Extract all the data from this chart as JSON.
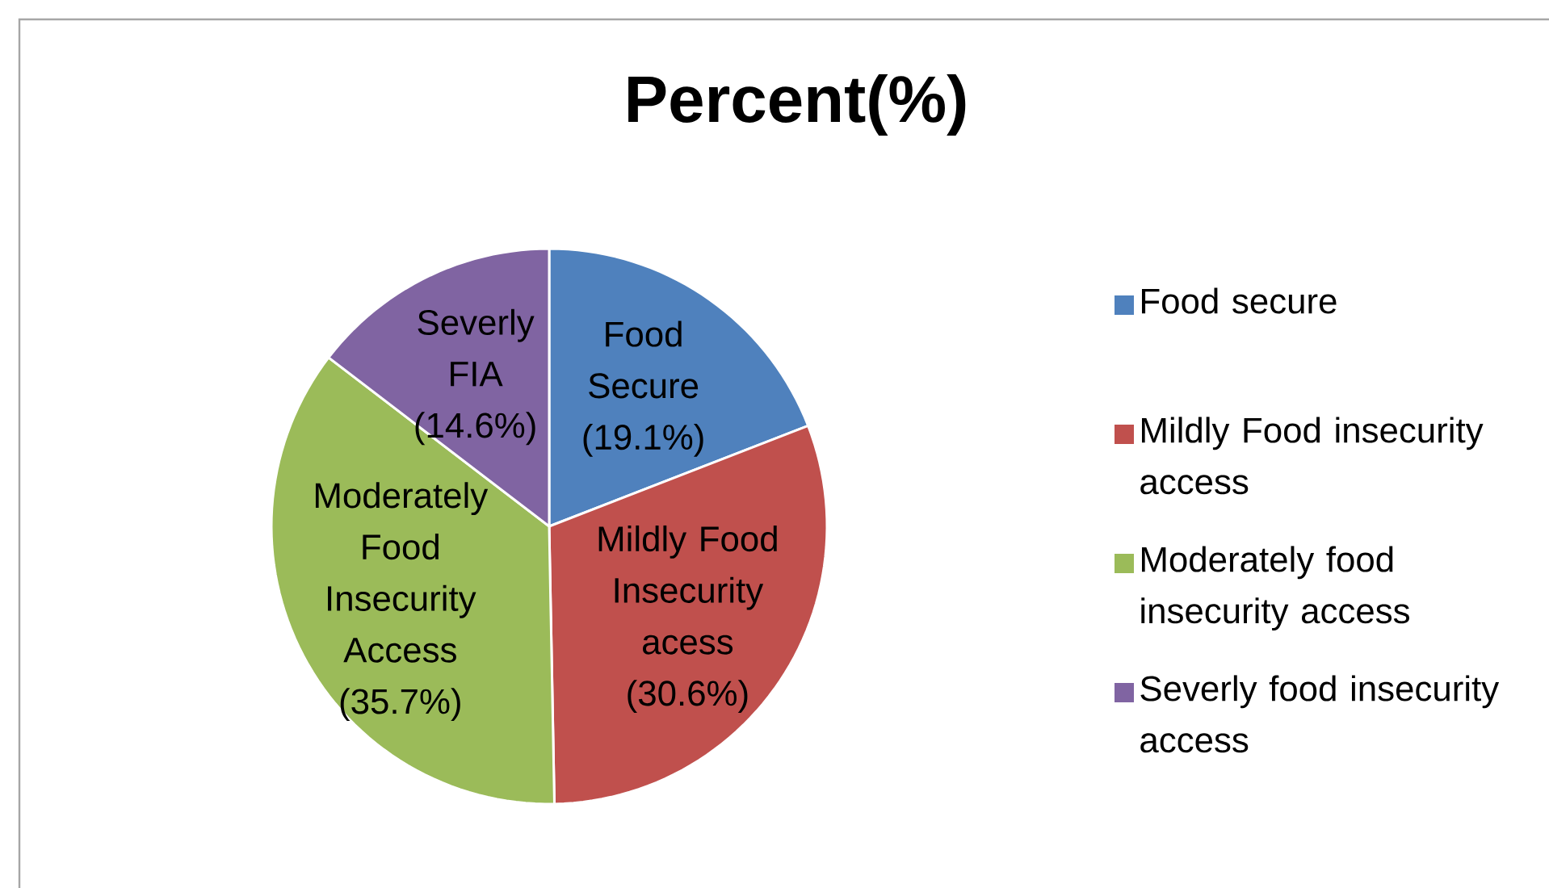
{
  "chart_data": {
    "type": "pie",
    "title": "Percent(%)",
    "categories": [
      "Food secure",
      "Mildly Food insecurity access",
      "Moderately food insecurity access",
      "Severly food insecurity access"
    ],
    "values": [
      19.1,
      30.6,
      35.7,
      14.6
    ],
    "colors": [
      "#4f81bd",
      "#c0504d",
      "#9bbb59",
      "#8064a2"
    ],
    "value_labels": [
      "Food Secure (19.1%)",
      "Mildly Food Insecurity acess (30.6%)",
      "Moderately Food Insecurity Access (35.7%)",
      "Severly FIA (14.6%)"
    ],
    "legend": "right"
  }
}
